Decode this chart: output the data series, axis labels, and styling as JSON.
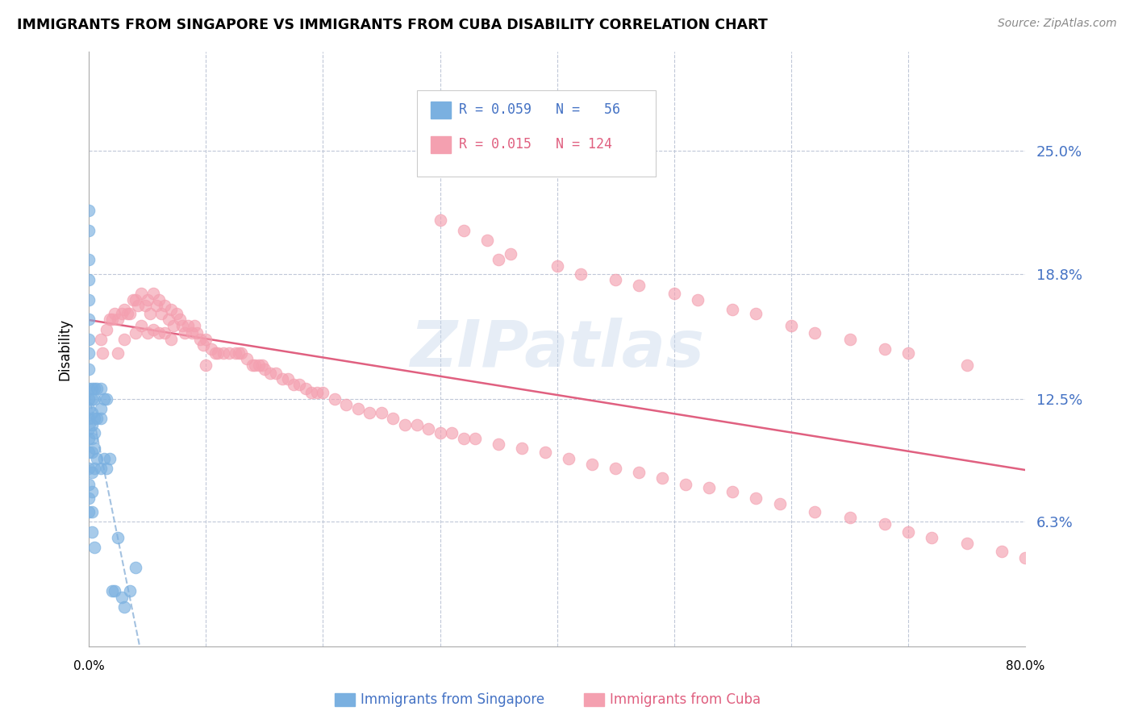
{
  "title": "IMMIGRANTS FROM SINGAPORE VS IMMIGRANTS FROM CUBA DISABILITY CORRELATION CHART",
  "source": "Source: ZipAtlas.com",
  "ylabel": "Disability",
  "ytick_labels": [
    "25.0%",
    "18.8%",
    "12.5%",
    "6.3%"
  ],
  "ytick_values": [
    0.25,
    0.188,
    0.125,
    0.063
  ],
  "xlim": [
    0.0,
    0.8
  ],
  "ylim": [
    0.0,
    0.3
  ],
  "color_singapore": "#7ab0e0",
  "color_cuba": "#f4a0b0",
  "trendline_color_singapore": "#99bbdd",
  "trendline_color_cuba": "#e06080",
  "watermark": "ZIPatlas",
  "sg_x": [
    0.0,
    0.0,
    0.0,
    0.0,
    0.0,
    0.0,
    0.0,
    0.0,
    0.0,
    0.0,
    0.0,
    0.0,
    0.0,
    0.0,
    0.0,
    0.0,
    0.0,
    0.0,
    0.0,
    0.0,
    0.003,
    0.003,
    0.003,
    0.003,
    0.003,
    0.003,
    0.003,
    0.003,
    0.003,
    0.003,
    0.005,
    0.005,
    0.005,
    0.005,
    0.005,
    0.005,
    0.005,
    0.007,
    0.007,
    0.007,
    0.01,
    0.01,
    0.01,
    0.01,
    0.013,
    0.013,
    0.015,
    0.015,
    0.018,
    0.02,
    0.022,
    0.025,
    0.028,
    0.03,
    0.035,
    0.04
  ],
  "sg_y": [
    0.22,
    0.21,
    0.195,
    0.185,
    0.175,
    0.165,
    0.155,
    0.148,
    0.14,
    0.13,
    0.125,
    0.12,
    0.115,
    0.11,
    0.105,
    0.098,
    0.09,
    0.082,
    0.075,
    0.068,
    0.13,
    0.125,
    0.118,
    0.112,
    0.105,
    0.098,
    0.088,
    0.078,
    0.068,
    0.058,
    0.13,
    0.125,
    0.115,
    0.108,
    0.1,
    0.09,
    0.05,
    0.13,
    0.115,
    0.095,
    0.13,
    0.12,
    0.115,
    0.09,
    0.125,
    0.095,
    0.125,
    0.09,
    0.095,
    0.028,
    0.028,
    0.055,
    0.025,
    0.02,
    0.028,
    0.04
  ],
  "cu_x": [
    0.01,
    0.012,
    0.015,
    0.018,
    0.02,
    0.022,
    0.025,
    0.025,
    0.028,
    0.03,
    0.03,
    0.033,
    0.035,
    0.038,
    0.04,
    0.04,
    0.042,
    0.045,
    0.045,
    0.048,
    0.05,
    0.05,
    0.052,
    0.055,
    0.055,
    0.058,
    0.06,
    0.06,
    0.062,
    0.065,
    0.065,
    0.068,
    0.07,
    0.07,
    0.072,
    0.075,
    0.078,
    0.08,
    0.082,
    0.085,
    0.088,
    0.09,
    0.092,
    0.095,
    0.098,
    0.1,
    0.1,
    0.105,
    0.108,
    0.11,
    0.115,
    0.12,
    0.125,
    0.128,
    0.13,
    0.135,
    0.14,
    0.142,
    0.145,
    0.148,
    0.15,
    0.155,
    0.16,
    0.165,
    0.17,
    0.175,
    0.18,
    0.185,
    0.19,
    0.195,
    0.2,
    0.21,
    0.22,
    0.23,
    0.24,
    0.25,
    0.26,
    0.27,
    0.28,
    0.29,
    0.3,
    0.31,
    0.32,
    0.33,
    0.35,
    0.37,
    0.39,
    0.41,
    0.43,
    0.45,
    0.47,
    0.49,
    0.51,
    0.53,
    0.55,
    0.57,
    0.59,
    0.62,
    0.65,
    0.68,
    0.7,
    0.72,
    0.75,
    0.78,
    0.8,
    0.35,
    0.4,
    0.42,
    0.45,
    0.47,
    0.5,
    0.52,
    0.55,
    0.57,
    0.6,
    0.62,
    0.65,
    0.68,
    0.7,
    0.75,
    0.3,
    0.32,
    0.34,
    0.36
  ],
  "cu_y": [
    0.155,
    0.148,
    0.16,
    0.165,
    0.165,
    0.168,
    0.165,
    0.148,
    0.168,
    0.17,
    0.155,
    0.168,
    0.168,
    0.175,
    0.175,
    0.158,
    0.172,
    0.178,
    0.162,
    0.172,
    0.175,
    0.158,
    0.168,
    0.178,
    0.16,
    0.172,
    0.175,
    0.158,
    0.168,
    0.172,
    0.158,
    0.165,
    0.17,
    0.155,
    0.162,
    0.168,
    0.165,
    0.162,
    0.158,
    0.162,
    0.158,
    0.162,
    0.158,
    0.155,
    0.152,
    0.155,
    0.142,
    0.15,
    0.148,
    0.148,
    0.148,
    0.148,
    0.148,
    0.148,
    0.148,
    0.145,
    0.142,
    0.142,
    0.142,
    0.142,
    0.14,
    0.138,
    0.138,
    0.135,
    0.135,
    0.132,
    0.132,
    0.13,
    0.128,
    0.128,
    0.128,
    0.125,
    0.122,
    0.12,
    0.118,
    0.118,
    0.115,
    0.112,
    0.112,
    0.11,
    0.108,
    0.108,
    0.105,
    0.105,
    0.102,
    0.1,
    0.098,
    0.095,
    0.092,
    0.09,
    0.088,
    0.085,
    0.082,
    0.08,
    0.078,
    0.075,
    0.072,
    0.068,
    0.065,
    0.062,
    0.058,
    0.055,
    0.052,
    0.048,
    0.045,
    0.195,
    0.192,
    0.188,
    0.185,
    0.182,
    0.178,
    0.175,
    0.17,
    0.168,
    0.162,
    0.158,
    0.155,
    0.15,
    0.148,
    0.142,
    0.215,
    0.21,
    0.205,
    0.198
  ]
}
